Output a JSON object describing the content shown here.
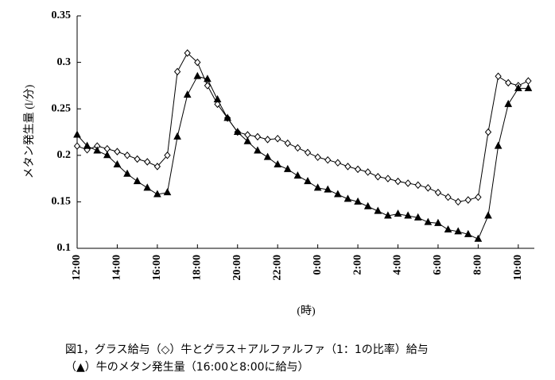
{
  "chart_data": {
    "type": "line",
    "ylabel": "メタン発生量 (l/分)",
    "xlabel": "(時)",
    "caption": [
      "図1，グラス給与（◇）牛とグラス＋アルファルファ（1：1の比率）給与",
      "（▲）牛のメタン発生量（16:00と8:00に給与）"
    ],
    "x": [
      12,
      12.5,
      13,
      13.5,
      14,
      14.5,
      15,
      15.5,
      16,
      16.5,
      17,
      17.5,
      18,
      18.5,
      19,
      19.5,
      20,
      20.5,
      21,
      21.5,
      22,
      22.5,
      23,
      23.5,
      24,
      24.5,
      25,
      25.5,
      26,
      26.5,
      27,
      27.5,
      28,
      28.5,
      29,
      29.5,
      30,
      30.5,
      31,
      31.5,
      32,
      32.5,
      33,
      33.5,
      34,
      34.5
    ],
    "series": [
      {
        "marker": "diamond",
        "color": "#000000",
        "values": [
          0.21,
          0.206,
          0.21,
          0.207,
          0.204,
          0.2,
          0.196,
          0.193,
          0.188,
          0.2,
          0.29,
          0.31,
          0.3,
          0.275,
          0.255,
          0.24,
          0.225,
          0.222,
          0.22,
          0.217,
          0.218,
          0.213,
          0.208,
          0.203,
          0.198,
          0.195,
          0.192,
          0.188,
          0.185,
          0.182,
          0.177,
          0.175,
          0.172,
          0.17,
          0.168,
          0.165,
          0.16,
          0.155,
          0.15,
          0.152,
          0.155,
          0.225,
          0.285,
          0.278,
          0.275,
          0.28
        ]
      },
      {
        "marker": "triangle",
        "color": "#000000",
        "values": [
          0.222,
          0.21,
          0.205,
          0.2,
          0.19,
          0.18,
          0.172,
          0.165,
          0.158,
          0.16,
          0.22,
          0.265,
          0.285,
          0.282,
          0.26,
          0.24,
          0.225,
          0.215,
          0.205,
          0.198,
          0.19,
          0.185,
          0.178,
          0.172,
          0.165,
          0.163,
          0.158,
          0.153,
          0.15,
          0.145,
          0.14,
          0.135,
          0.137,
          0.135,
          0.133,
          0.128,
          0.127,
          0.12,
          0.118,
          0.115,
          0.11,
          0.135,
          0.21,
          0.255,
          0.272,
          0.272
        ]
      }
    ],
    "xlim": [
      12,
      34.8
    ],
    "xticks": [
      {
        "value": 12,
        "label": "12:00"
      },
      {
        "value": 14,
        "label": "14:00"
      },
      {
        "value": 16,
        "label": "16:00"
      },
      {
        "value": 18,
        "label": "18:00"
      },
      {
        "value": 20,
        "label": "20:00"
      },
      {
        "value": 22,
        "label": "22:00"
      },
      {
        "value": 24,
        "label": "0:00"
      },
      {
        "value": 26,
        "label": "2:00"
      },
      {
        "value": 28,
        "label": "4:00"
      },
      {
        "value": 30,
        "label": "6:00"
      },
      {
        "value": 32,
        "label": "8:00"
      },
      {
        "value": 34,
        "label": "10:00"
      }
    ],
    "ylim": [
      0.1,
      0.35
    ],
    "yticks": [
      0.1,
      0.15,
      0.2,
      0.25,
      0.3,
      0.35
    ],
    "grid": false
  }
}
